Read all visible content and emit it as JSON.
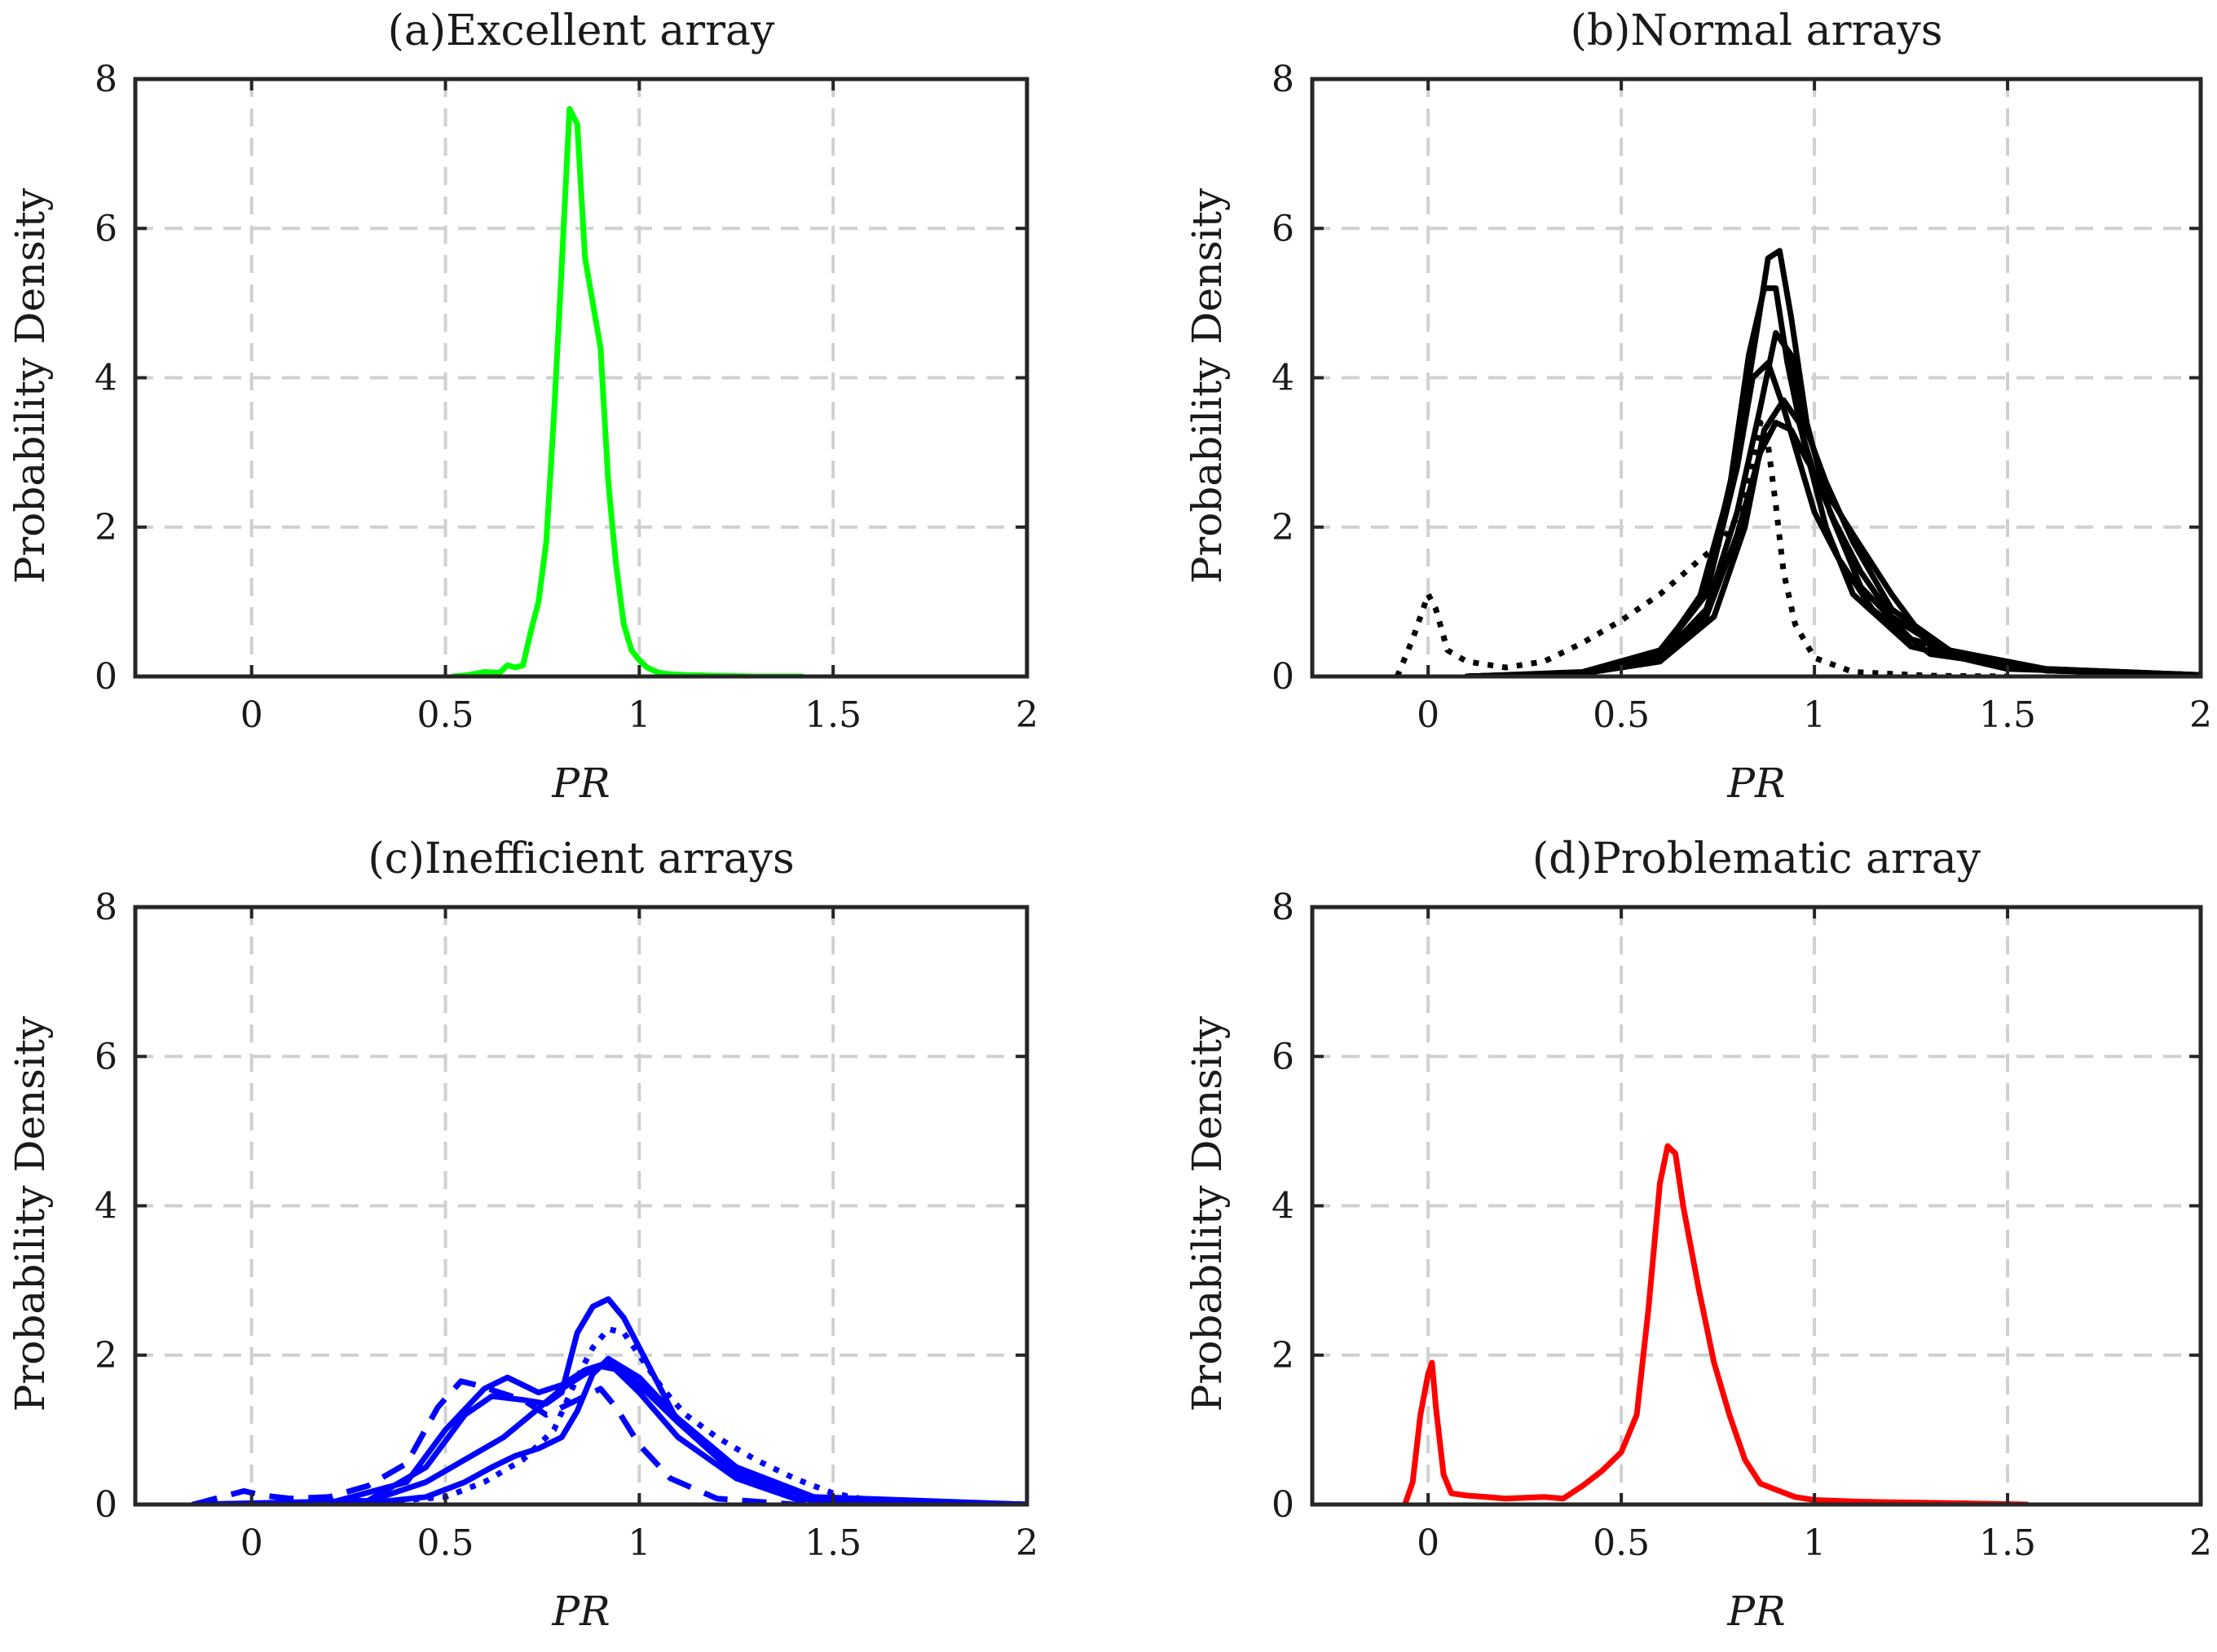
{
  "figure": {
    "background": "#ffffff"
  },
  "chart_data": [
    {
      "id": "a",
      "type": "line",
      "title": "(a)Excellent array",
      "xlabel": "PR",
      "ylabel": "Probability Density",
      "xlim": [
        -0.3,
        2
      ],
      "ylim": [
        0,
        8
      ],
      "xticks": [
        0,
        0.5,
        1,
        1.5,
        2
      ],
      "xtick_labels": [
        "0",
        "0.5",
        "1",
        "1.5",
        "2"
      ],
      "yticks": [
        0,
        2,
        4,
        6,
        8
      ],
      "ytick_labels": [
        "0",
        "2",
        "4",
        "6",
        "8"
      ],
      "grid": true,
      "series": [
        {
          "color": "#00ff00",
          "style": "solid",
          "x": [
            0.52,
            0.56,
            0.6,
            0.64,
            0.66,
            0.68,
            0.7,
            0.72,
            0.74,
            0.76,
            0.78,
            0.8,
            0.82,
            0.84,
            0.86,
            0.88,
            0.9,
            0.92,
            0.94,
            0.96,
            0.98,
            1.0,
            1.02,
            1.05,
            1.08,
            1.12,
            1.2,
            1.3,
            1.42
          ],
          "y": [
            0.0,
            0.02,
            0.06,
            0.05,
            0.15,
            0.12,
            0.15,
            0.6,
            1.0,
            1.8,
            3.5,
            5.5,
            7.6,
            7.4,
            5.6,
            5.0,
            4.4,
            2.6,
            1.5,
            0.7,
            0.35,
            0.22,
            0.12,
            0.05,
            0.03,
            0.02,
            0.01,
            0.0,
            0.0
          ]
        }
      ]
    },
    {
      "id": "b",
      "type": "line",
      "title": "(b)Normal arrays",
      "xlabel": "PR",
      "ylabel": "Probability Density",
      "xlim": [
        -0.3,
        2
      ],
      "ylim": [
        0,
        8
      ],
      "xticks": [
        0,
        0.5,
        1,
        1.5,
        2
      ],
      "xtick_labels": [
        "0",
        "0.5",
        "1",
        "1.5",
        "2"
      ],
      "yticks": [
        0,
        2,
        4,
        6,
        8
      ],
      "ytick_labels": [
        "0",
        "2",
        "4",
        "6",
        "8"
      ],
      "grid": true,
      "series": [
        {
          "color": "#000000",
          "style": "solid",
          "x": [
            0.1,
            0.4,
            0.6,
            0.72,
            0.8,
            0.85,
            0.88,
            0.91,
            0.94,
            0.98,
            1.04,
            1.12,
            1.25,
            1.5,
            2.0
          ],
          "y": [
            0.0,
            0.05,
            0.3,
            1.2,
            3.0,
            4.6,
            5.6,
            5.7,
            4.8,
            3.4,
            2.2,
            1.2,
            0.5,
            0.12,
            0.02
          ]
        },
        {
          "color": "#000000",
          "style": "solid",
          "x": [
            0.1,
            0.4,
            0.6,
            0.7,
            0.78,
            0.83,
            0.87,
            0.9,
            0.93,
            0.97,
            1.03,
            1.1,
            1.25,
            1.5,
            2.0
          ],
          "y": [
            0.0,
            0.06,
            0.35,
            1.0,
            2.5,
            4.3,
            5.2,
            5.2,
            4.2,
            3.2,
            2.0,
            1.1,
            0.4,
            0.1,
            0.02
          ]
        },
        {
          "color": "#000000",
          "style": "solid",
          "x": [
            0.1,
            0.4,
            0.6,
            0.72,
            0.8,
            0.86,
            0.9,
            0.94,
            0.98,
            1.03,
            1.1,
            1.2,
            1.35,
            1.6,
            2.0
          ],
          "y": [
            0.0,
            0.05,
            0.25,
            0.9,
            2.2,
            3.6,
            4.6,
            4.3,
            3.3,
            2.6,
            1.8,
            0.9,
            0.35,
            0.08,
            0.02
          ]
        },
        {
          "color": "#000000",
          "style": "solid",
          "x": [
            0.1,
            0.4,
            0.6,
            0.72,
            0.8,
            0.86,
            0.9,
            0.94,
            0.98,
            1.04,
            1.1,
            1.2,
            1.3,
            1.6,
            2.0
          ],
          "y": [
            0.0,
            0.04,
            0.2,
            0.8,
            1.9,
            3.0,
            3.4,
            3.3,
            2.9,
            2.4,
            1.9,
            1.1,
            0.4,
            0.1,
            0.02
          ]
        },
        {
          "color": "#000000",
          "style": "solid",
          "x": [
            0.1,
            0.4,
            0.6,
            0.74,
            0.82,
            0.87,
            0.92,
            0.96,
            1.0,
            1.05,
            1.12,
            1.2,
            1.35,
            1.6,
            2.0
          ],
          "y": [
            0.0,
            0.04,
            0.2,
            0.8,
            2.0,
            3.3,
            3.7,
            3.4,
            2.7,
            2.1,
            1.4,
            0.8,
            0.3,
            0.08,
            0.02
          ]
        },
        {
          "color": "#000000",
          "style": "solid",
          "x": [
            0.1,
            0.4,
            0.6,
            0.72,
            0.8,
            0.84,
            0.88,
            0.92,
            0.96,
            1.0,
            1.06,
            1.15,
            1.3,
            1.6,
            2.0
          ],
          "y": [
            0.0,
            0.05,
            0.3,
            1.1,
            2.8,
            4.0,
            4.2,
            3.6,
            2.9,
            2.2,
            1.6,
            0.9,
            0.3,
            0.08,
            0.02
          ]
        },
        {
          "color": "#000000",
          "style": "dotted",
          "x": [
            -0.08,
            -0.04,
            0.0,
            0.02,
            0.05,
            0.1,
            0.2,
            0.3,
            0.4,
            0.5,
            0.6,
            0.7,
            0.76,
            0.82,
            0.86,
            0.88,
            0.9,
            0.92,
            0.95,
            1.0,
            1.1,
            1.3,
            1.5
          ],
          "y": [
            0.0,
            0.5,
            1.1,
            0.9,
            0.35,
            0.2,
            0.12,
            0.2,
            0.45,
            0.75,
            1.1,
            1.55,
            1.8,
            2.3,
            3.4,
            3.1,
            2.3,
            1.4,
            0.7,
            0.25,
            0.06,
            0.01,
            0.0
          ]
        }
      ]
    },
    {
      "id": "c",
      "type": "line",
      "title": "(c)Inefficient arrays",
      "xlabel": "PR",
      "ylabel": "Probability Density",
      "xlim": [
        -0.3,
        2
      ],
      "ylim": [
        0,
        8
      ],
      "xticks": [
        0,
        0.5,
        1,
        1.5,
        2
      ],
      "xtick_labels": [
        "0",
        "0.5",
        "1",
        "1.5",
        "2"
      ],
      "yticks": [
        0,
        2,
        4,
        6,
        8
      ],
      "ytick_labels": [
        "0",
        "2",
        "4",
        "6",
        "8"
      ],
      "grid": true,
      "series": [
        {
          "color": "#0000ff",
          "style": "solid",
          "x": [
            -0.15,
            0.2,
            0.4,
            0.5,
            0.6,
            0.66,
            0.74,
            0.8,
            0.86,
            0.92,
            1.0,
            1.1,
            1.25,
            1.4,
            1.6,
            2.0
          ],
          "y": [
            0.0,
            0.02,
            0.3,
            1.0,
            1.55,
            1.7,
            1.5,
            1.6,
            1.8,
            1.9,
            1.5,
            0.9,
            0.35,
            0.08,
            0.01,
            0.0
          ]
        },
        {
          "color": "#0000ff",
          "style": "solid",
          "x": [
            -0.15,
            0.3,
            0.45,
            0.55,
            0.62,
            0.7,
            0.76,
            0.8,
            0.84,
            0.88,
            0.92,
            0.96,
            1.02,
            1.1,
            1.25,
            1.45,
            2.0
          ],
          "y": [
            0.0,
            0.05,
            0.5,
            1.2,
            1.45,
            1.4,
            1.35,
            1.5,
            2.3,
            2.65,
            2.75,
            2.5,
            1.9,
            1.1,
            0.4,
            0.08,
            0.0
          ]
        },
        {
          "color": "#0000ff",
          "style": "solid",
          "x": [
            -0.15,
            0.3,
            0.45,
            0.55,
            0.65,
            0.72,
            0.8,
            0.86,
            0.9,
            0.95,
            1.0,
            1.1,
            1.25,
            1.45,
            2.0
          ],
          "y": [
            0.0,
            0.04,
            0.3,
            0.6,
            0.9,
            1.2,
            1.55,
            1.75,
            1.85,
            1.8,
            1.6,
            1.1,
            0.45,
            0.08,
            0.0
          ]
        },
        {
          "color": "#0000ff",
          "style": "solid",
          "x": [
            -0.15,
            0.3,
            0.45,
            0.55,
            0.62,
            0.68,
            0.74,
            0.8,
            0.84,
            0.88,
            0.92,
            1.0,
            1.1,
            1.25,
            1.45,
            2.0
          ],
          "y": [
            0.0,
            0.02,
            0.1,
            0.3,
            0.5,
            0.65,
            0.75,
            0.9,
            1.25,
            1.75,
            1.95,
            1.7,
            1.15,
            0.5,
            0.1,
            0.0
          ]
        },
        {
          "color": "#0000ff",
          "style": "dashed",
          "x": [
            -0.15,
            -0.02,
            0.03,
            0.1,
            0.2,
            0.3,
            0.4,
            0.48,
            0.54,
            0.58,
            0.64,
            0.7,
            0.76,
            0.8,
            0.86,
            0.9,
            0.94,
            1.0,
            1.08,
            1.2,
            1.4,
            2.0
          ],
          "y": [
            0.0,
            0.18,
            0.12,
            0.08,
            0.1,
            0.25,
            0.55,
            1.3,
            1.65,
            1.6,
            1.5,
            1.4,
            1.2,
            1.3,
            1.45,
            1.55,
            1.3,
            0.8,
            0.35,
            0.08,
            0.0,
            0.0
          ]
        },
        {
          "color": "#0000ff",
          "style": "dotted",
          "x": [
            -0.15,
            0.3,
            0.5,
            0.6,
            0.7,
            0.78,
            0.84,
            0.88,
            0.92,
            0.96,
            1.0,
            1.06,
            1.12,
            1.2,
            1.3,
            1.4,
            1.5,
            1.6,
            1.8,
            2.0
          ],
          "y": [
            0.0,
            0.02,
            0.1,
            0.3,
            0.6,
            1.0,
            1.7,
            2.1,
            2.35,
            2.3,
            2.0,
            1.55,
            1.2,
            0.9,
            0.6,
            0.35,
            0.15,
            0.05,
            0.01,
            0.0
          ]
        }
      ]
    },
    {
      "id": "d",
      "type": "line",
      "title": "(d)Problematic array",
      "xlabel": "PR",
      "ylabel": "Probability Density",
      "xlim": [
        -0.3,
        2
      ],
      "ylim": [
        0,
        8
      ],
      "xticks": [
        0,
        0.5,
        1,
        1.5,
        2
      ],
      "xtick_labels": [
        "0",
        "0.5",
        "1",
        "1.5",
        "2"
      ],
      "yticks": [
        0,
        2,
        4,
        6,
        8
      ],
      "ytick_labels": [
        "0",
        "2",
        "4",
        "6",
        "8"
      ],
      "grid": true,
      "series": [
        {
          "color": "#ff0000",
          "style": "solid",
          "x": [
            -0.06,
            -0.04,
            -0.02,
            0.0,
            0.01,
            0.02,
            0.04,
            0.06,
            0.1,
            0.15,
            0.2,
            0.3,
            0.35,
            0.4,
            0.45,
            0.5,
            0.54,
            0.57,
            0.6,
            0.62,
            0.64,
            0.66,
            0.7,
            0.74,
            0.78,
            0.82,
            0.86,
            0.9,
            0.95,
            1.0,
            1.1,
            1.2,
            1.35,
            1.55
          ],
          "y": [
            0.0,
            0.3,
            1.2,
            1.75,
            1.9,
            1.3,
            0.4,
            0.15,
            0.12,
            0.1,
            0.08,
            0.1,
            0.08,
            0.25,
            0.45,
            0.7,
            1.2,
            2.6,
            4.3,
            4.8,
            4.7,
            4.0,
            2.9,
            1.9,
            1.2,
            0.6,
            0.28,
            0.2,
            0.1,
            0.06,
            0.04,
            0.03,
            0.02,
            0.0
          ]
        }
      ]
    }
  ]
}
